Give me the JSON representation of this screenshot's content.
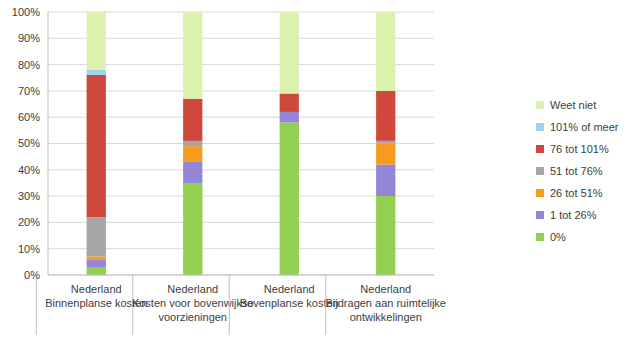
{
  "chart_data": {
    "type": "bar",
    "stacked": true,
    "grid": true,
    "legend": "right",
    "categories": [
      "Nederland\nBinnenplanse kosten",
      "Nederland\nKosten voor bovenwijkse\nvoorzieningen",
      "Nederland\nBovenplanse kosten",
      "Nederland\nBijdragen aan ruimtelijke\nontwikkelingen"
    ],
    "series": [
      {
        "name": "0%",
        "color": "#92d050",
        "values": [
          3,
          35,
          58,
          30
        ]
      },
      {
        "name": "1 tot 26%",
        "color": "#9585d6",
        "values": [
          3,
          8,
          4,
          12
        ]
      },
      {
        "name": "26 tot 51%",
        "color": "#f79b1e",
        "values": [
          1,
          6,
          0,
          8
        ]
      },
      {
        "name": "51 tot 76%",
        "color": "#a6a6a6",
        "values": [
          15,
          2,
          0,
          1
        ]
      },
      {
        "name": "76 tot 101%",
        "color": "#d0483c",
        "values": [
          54,
          16,
          7,
          19
        ]
      },
      {
        "name": "101% of meer",
        "color": "#9dd5ef",
        "values": [
          2,
          0,
          0,
          0
        ]
      },
      {
        "name": "Weet niet",
        "color": "#daf2ad",
        "values": [
          22,
          33,
          31,
          30
        ]
      }
    ],
    "ylim": [
      0,
      100
    ],
    "yticks": [
      {
        "value": 0,
        "label": "0%"
      },
      {
        "value": 10,
        "label": "10%"
      },
      {
        "value": 20,
        "label": "20%"
      },
      {
        "value": 30,
        "label": "30%"
      },
      {
        "value": 40,
        "label": "40%"
      },
      {
        "value": 50,
        "label": "50%"
      },
      {
        "value": 60,
        "label": "60%"
      },
      {
        "value": 70,
        "label": "70%"
      },
      {
        "value": 80,
        "label": "80%"
      },
      {
        "value": 90,
        "label": "90%"
      },
      {
        "value": 100,
        "label": "100%"
      }
    ]
  }
}
